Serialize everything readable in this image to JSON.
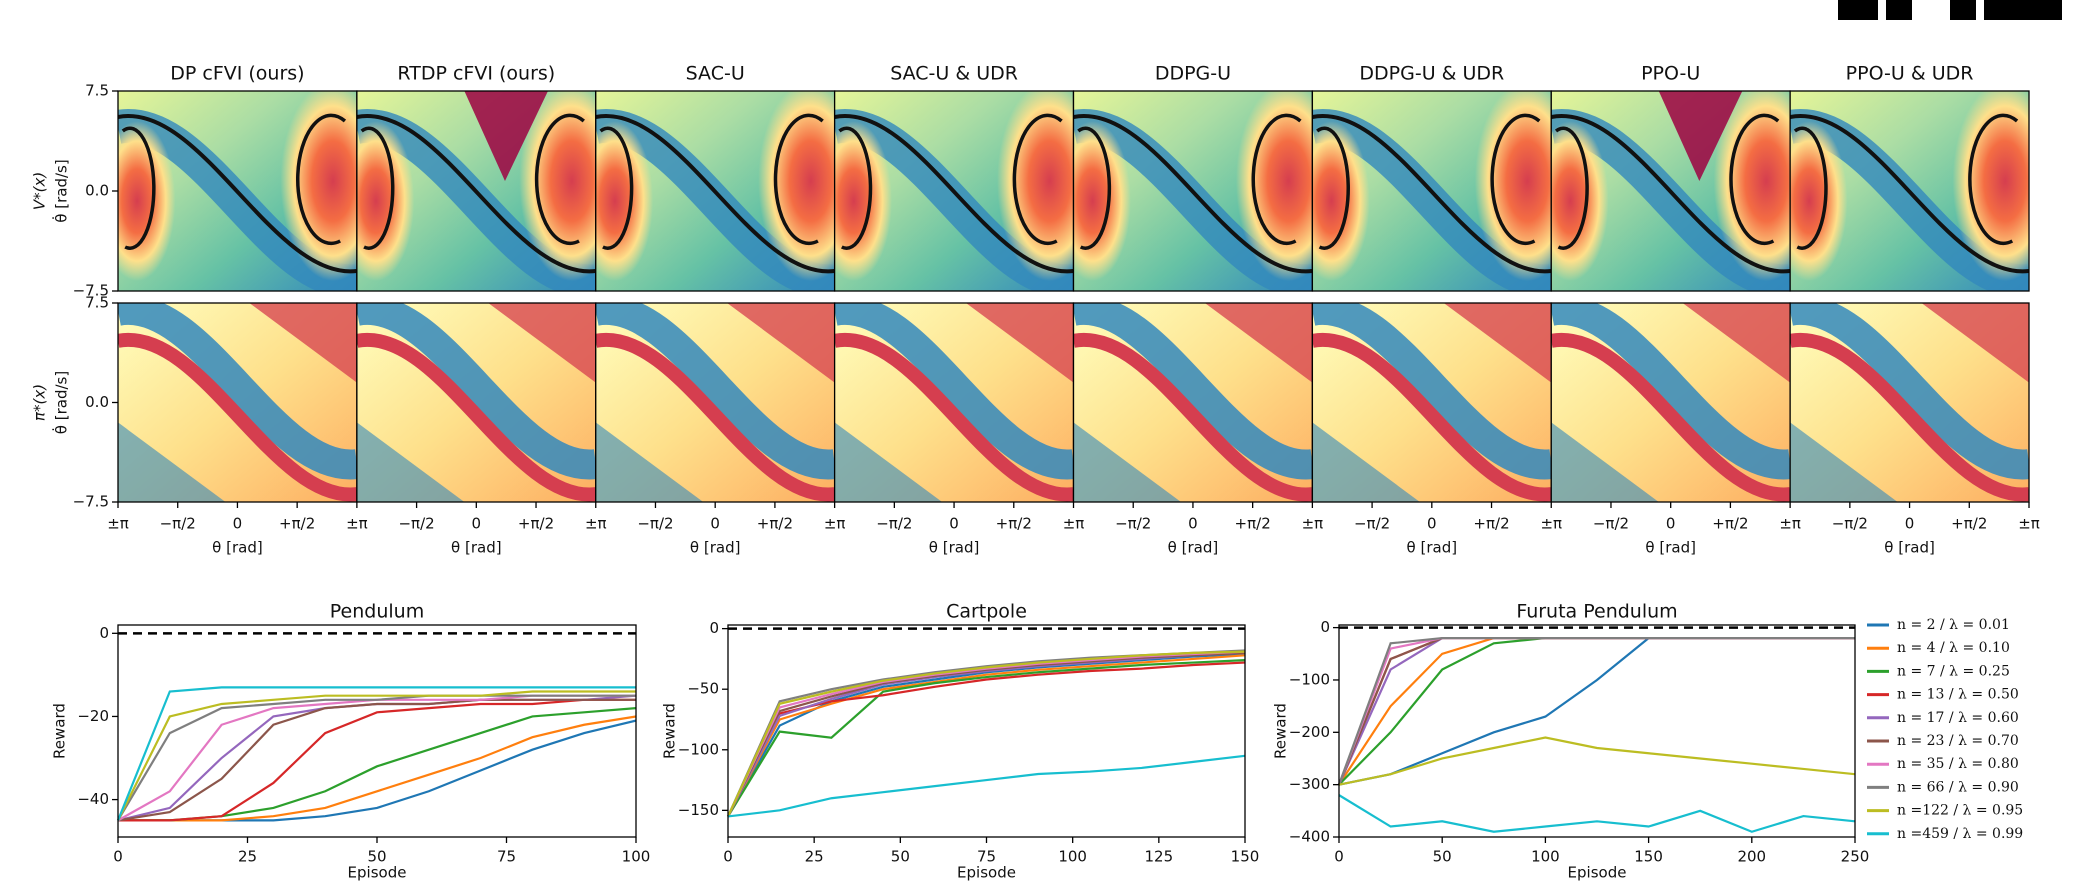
{
  "heatmap_grid": {
    "columns": [
      "DP cFVI (ours)",
      "RTDP cFVI (ours)",
      "SAC-U",
      "SAC-U & UDR",
      "DDPG-U",
      "DDPG-U & UDR",
      "PPO-U",
      "PPO-U & UDR"
    ],
    "rows": [
      {
        "label": "V*(x)",
        "unit": "θ̇ [rad/s]"
      },
      {
        "label": "π*(x)",
        "unit": "θ̇ [rad/s]"
      }
    ],
    "ylim": [
      -7.5,
      7.5
    ],
    "yticks": [
      7.5,
      {
        "value": 0,
        "label": "0.0"
      },
      {
        "value": -7.5,
        "label": "−7.5"
      }
    ],
    "xlim": [
      -3.1416,
      3.1416
    ],
    "xticks": [
      {
        "value": -3.1416,
        "label": "±π"
      },
      {
        "value": -1.5708,
        "label": "−π/2"
      },
      0,
      {
        "value": 1.5708,
        "label": "+π/2"
      },
      {
        "value": 3.1416,
        "label": "±π"
      }
    ],
    "xlabel": "θ [rad]"
  },
  "chart_data": [
    {
      "type": "line",
      "title": "Pendulum",
      "xlabel": "Episode",
      "ylabel": "Reward",
      "x": [
        0,
        10,
        20,
        30,
        40,
        50,
        60,
        70,
        80,
        90,
        100
      ],
      "xlim": [
        0,
        100
      ],
      "xticks": [
        0,
        25,
        50,
        75,
        100
      ],
      "ylim": [
        -49,
        2
      ],
      "yticks": [
        0,
        {
          "value": -20,
          "label": "−20"
        },
        {
          "value": -40,
          "label": "−40"
        }
      ],
      "reference_line": 0,
      "series": [
        {
          "values": [
            -45,
            -45,
            -45,
            -45,
            -44,
            -42,
            -38,
            -33,
            -28,
            -24,
            -21
          ]
        },
        {
          "values": [
            -45,
            -45,
            -45,
            -44,
            -42,
            -38,
            -34,
            -30,
            -25,
            -22,
            -20
          ]
        },
        {
          "values": [
            -45,
            -45,
            -44,
            -42,
            -38,
            -32,
            -28,
            -24,
            -20,
            -19,
            -18
          ]
        },
        {
          "values": [
            -45,
            -45,
            -44,
            -36,
            -24,
            -19,
            -18,
            -17,
            -17,
            -16,
            -16
          ]
        },
        {
          "values": [
            -45,
            -42,
            -30,
            -20,
            -18,
            -17,
            -17,
            -16,
            -16,
            -16,
            -15
          ]
        },
        {
          "values": [
            -45,
            -43,
            -35,
            -22,
            -18,
            -17,
            -17,
            -16,
            -16,
            -16,
            -16
          ]
        },
        {
          "values": [
            -45,
            -38,
            -22,
            -18,
            -17,
            -16,
            -16,
            -16,
            -15,
            -15,
            -15
          ]
        },
        {
          "values": [
            -45,
            -24,
            -18,
            -17,
            -16,
            -16,
            -15,
            -15,
            -15,
            -15,
            -15
          ]
        },
        {
          "values": [
            -45,
            -20,
            -17,
            -16,
            -15,
            -15,
            -15,
            -15,
            -14,
            -14,
            -14
          ]
        },
        {
          "values": [
            -45,
            -14,
            -13,
            -13,
            -13,
            -13,
            -13,
            -13,
            -13,
            -13,
            -13
          ]
        }
      ]
    },
    {
      "type": "line",
      "title": "Cartpole",
      "xlabel": "Episode",
      "ylabel": "Reward",
      "x": [
        0,
        15,
        30,
        45,
        60,
        75,
        90,
        105,
        120,
        135,
        150
      ],
      "xlim": [
        0,
        150
      ],
      "xticks": [
        0,
        25,
        50,
        75,
        100,
        125,
        150
      ],
      "ylim": [
        -172,
        3
      ],
      "yticks": [
        0,
        {
          "value": -50,
          "label": "−50"
        },
        {
          "value": -100,
          "label": "−100"
        },
        {
          "value": -150,
          "label": "−150"
        }
      ],
      "reference_line": 0,
      "series": [
        {
          "values": [
            -155,
            -80,
            -60,
            -48,
            -42,
            -36,
            -32,
            -29,
            -26,
            -23,
            -21
          ]
        },
        {
          "values": [
            -155,
            -75,
            -62,
            -50,
            -44,
            -38,
            -34,
            -31,
            -28,
            -25,
            -22
          ]
        },
        {
          "values": [
            -155,
            -85,
            -90,
            -52,
            -45,
            -40,
            -36,
            -33,
            -30,
            -28,
            -26
          ]
        },
        {
          "values": [
            -155,
            -70,
            -60,
            -55,
            -48,
            -42,
            -38,
            -35,
            -33,
            -30,
            -28
          ]
        },
        {
          "values": [
            -155,
            -72,
            -58,
            -46,
            -40,
            -35,
            -31,
            -28,
            -25,
            -22,
            -20
          ]
        },
        {
          "values": [
            -155,
            -68,
            -56,
            -45,
            -39,
            -34,
            -30,
            -27,
            -24,
            -22,
            -20
          ]
        },
        {
          "values": [
            -155,
            -65,
            -54,
            -44,
            -38,
            -33,
            -29,
            -26,
            -23,
            -21,
            -19
          ]
        },
        {
          "values": [
            -155,
            -60,
            -50,
            -42,
            -36,
            -31,
            -27,
            -24,
            -22,
            -20,
            -18
          ]
        },
        {
          "values": [
            -155,
            -62,
            -52,
            -43,
            -37,
            -32,
            -28,
            -25,
            -22,
            -20,
            -19
          ]
        },
        {
          "values": [
            -155,
            -150,
            -140,
            -135,
            -130,
            -125,
            -120,
            -118,
            -115,
            -110,
            -105
          ]
        }
      ]
    },
    {
      "type": "line",
      "title": "Furuta Pendulum",
      "xlabel": "Episode",
      "ylabel": "Reward",
      "x": [
        0,
        25,
        50,
        75,
        100,
        125,
        150,
        175,
        200,
        225,
        250
      ],
      "xlim": [
        0,
        250
      ],
      "xticks": [
        0,
        50,
        100,
        150,
        200,
        250
      ],
      "ylim": [
        -400,
        5
      ],
      "yticks": [
        0,
        {
          "value": -100,
          "label": "−100"
        },
        {
          "value": -200,
          "label": "−200"
        },
        {
          "value": -300,
          "label": "−300"
        },
        {
          "value": -400,
          "label": "−400"
        }
      ],
      "reference_line": 0,
      "legend": "right",
      "series": [
        {
          "name": "n = 2 / λ = 0.01",
          "color": "#1f77b4",
          "values": [
            -300,
            -280,
            -240,
            -200,
            -170,
            -100,
            -20,
            -20,
            -20,
            -20,
            -20
          ]
        },
        {
          "name": "n = 4 / λ = 0.10",
          "color": "#ff7f0e",
          "values": [
            -300,
            -150,
            -50,
            -20,
            -20,
            -20,
            -20,
            -20,
            -20,
            -20,
            -20
          ]
        },
        {
          "name": "n = 7 / λ = 0.25",
          "color": "#2ca02c",
          "values": [
            -300,
            -200,
            -80,
            -30,
            -20,
            -20,
            -20,
            -20,
            -20,
            -20,
            -20
          ]
        },
        {
          "name": "n = 13 / λ = 0.50",
          "color": "#d62728",
          "values": [
            -300,
            -60,
            -20,
            -20,
            -20,
            -20,
            -20,
            -20,
            -20,
            -20,
            -20
          ]
        },
        {
          "name": "n = 17 / λ = 0.60",
          "color": "#9467bd",
          "values": [
            -300,
            -80,
            -20,
            -20,
            -20,
            -20,
            -20,
            -20,
            -20,
            -20,
            -20
          ]
        },
        {
          "name": "n = 23 / λ = 0.70",
          "color": "#8c564b",
          "values": [
            -300,
            -60,
            -20,
            -20,
            -20,
            -20,
            -20,
            -20,
            -20,
            -20,
            -20
          ]
        },
        {
          "name": "n = 35 / λ = 0.80",
          "color": "#e377c2",
          "values": [
            -300,
            -40,
            -20,
            -20,
            -20,
            -20,
            -20,
            -20,
            -20,
            -20,
            -20
          ]
        },
        {
          "name": "n = 66 / λ = 0.90",
          "color": "#7f7f7f",
          "values": [
            -300,
            -30,
            -20,
            -20,
            -20,
            -20,
            -20,
            -20,
            -20,
            -20,
            -20
          ]
        },
        {
          "name": "n =122 / λ = 0.95",
          "color": "#bcbd22",
          "values": [
            -300,
            -280,
            -250,
            -230,
            -210,
            -230,
            -240,
            -250,
            -260,
            -270,
            -280
          ]
        },
        {
          "name": "n =459 / λ = 0.99",
          "color": "#17becf",
          "values": [
            -320,
            -380,
            -370,
            -390,
            -380,
            -370,
            -380,
            -350,
            -390,
            -360,
            -370
          ]
        }
      ]
    }
  ]
}
